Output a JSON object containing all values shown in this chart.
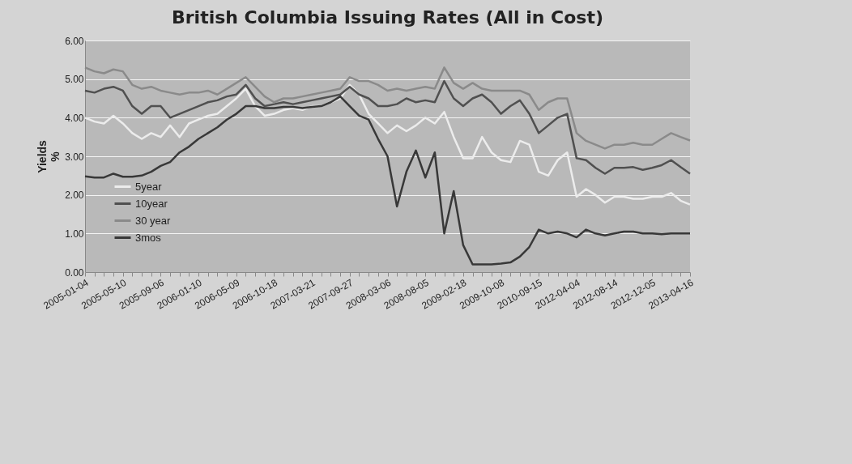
{
  "chart_data": {
    "type": "line",
    "title": "British Columbia Issuing Rates (All in Cost)",
    "ylabel": "Yields\n%",
    "categories": [
      "2005-01-04",
      null,
      null,
      null,
      "2005-05-10",
      null,
      null,
      null,
      "2005-09-06",
      null,
      null,
      null,
      "2006-01-10",
      null,
      null,
      null,
      "2006-05-09",
      null,
      null,
      null,
      "2006-10-18",
      null,
      null,
      null,
      "2007-03-21",
      null,
      null,
      null,
      "2007-09-27",
      null,
      null,
      null,
      "2008-03-06",
      null,
      null,
      null,
      "2008-08-05",
      null,
      null,
      null,
      "2009-02-18",
      null,
      null,
      null,
      "2009-10-08",
      null,
      null,
      null,
      "2010-09-15",
      null,
      null,
      null,
      "2012-04-04",
      null,
      null,
      null,
      "2012-08-14",
      null,
      null,
      null,
      "2012-12-05",
      null,
      null,
      null,
      "2013-04-16"
    ],
    "series": [
      {
        "name": "5year",
        "color": "#ececec",
        "values": [
          4.0,
          3.9,
          3.85,
          4.05,
          3.85,
          3.6,
          3.45,
          3.6,
          3.5,
          3.8,
          3.5,
          3.85,
          3.95,
          4.05,
          4.1,
          4.3,
          4.5,
          4.75,
          4.3,
          4.05,
          4.1,
          4.2,
          4.25,
          4.2,
          4.3,
          4.3,
          4.4,
          4.5,
          4.85,
          4.6,
          4.1,
          3.85,
          3.6,
          3.8,
          3.65,
          3.8,
          4.0,
          3.85,
          4.15,
          3.5,
          2.95,
          2.95,
          3.5,
          3.1,
          2.9,
          2.85,
          3.4,
          3.3,
          2.6,
          2.5,
          2.9,
          3.1,
          1.95,
          2.15,
          2.0,
          1.8,
          1.95,
          1.95,
          1.9,
          1.9,
          1.95,
          1.95,
          2.05,
          1.85,
          1.75
        ]
      },
      {
        "name": "10year",
        "color": "#505050",
        "values": [
          4.7,
          4.65,
          4.75,
          4.8,
          4.7,
          4.3,
          4.1,
          4.3,
          4.3,
          4.0,
          4.1,
          4.2,
          4.3,
          4.4,
          4.45,
          4.55,
          4.6,
          4.85,
          4.5,
          4.3,
          4.35,
          4.4,
          4.35,
          4.4,
          4.45,
          4.5,
          4.55,
          4.6,
          4.8,
          4.6,
          4.5,
          4.3,
          4.3,
          4.35,
          4.5,
          4.4,
          4.45,
          4.4,
          4.95,
          4.5,
          4.3,
          4.5,
          4.6,
          4.4,
          4.1,
          4.3,
          4.45,
          4.1,
          3.6,
          3.8,
          4.0,
          4.1,
          2.95,
          2.9,
          2.7,
          2.55,
          2.7,
          2.7,
          2.72,
          2.65,
          2.7,
          2.77,
          2.9,
          2.72,
          2.55
        ]
      },
      {
        "name": "30 year",
        "color": "#8a8a8a",
        "values": [
          5.3,
          5.2,
          5.15,
          5.25,
          5.2,
          4.85,
          4.75,
          4.8,
          4.7,
          4.65,
          4.6,
          4.65,
          4.65,
          4.7,
          4.6,
          4.75,
          4.9,
          5.05,
          4.8,
          4.55,
          4.4,
          4.5,
          4.5,
          4.55,
          4.6,
          4.65,
          4.7,
          4.75,
          5.05,
          4.95,
          4.95,
          4.85,
          4.7,
          4.75,
          4.7,
          4.75,
          4.8,
          4.75,
          5.3,
          4.9,
          4.75,
          4.9,
          4.75,
          4.7,
          4.7,
          4.7,
          4.7,
          4.6,
          4.2,
          4.4,
          4.5,
          4.5,
          3.6,
          3.4,
          3.3,
          3.2,
          3.3,
          3.3,
          3.35,
          3.3,
          3.3,
          3.45,
          3.6,
          3.5,
          3.41
        ]
      },
      {
        "name": "3mos",
        "color": "#383838",
        "values": [
          2.48,
          2.45,
          2.45,
          2.55,
          2.47,
          2.47,
          2.5,
          2.6,
          2.75,
          2.85,
          3.1,
          3.25,
          3.45,
          3.6,
          3.75,
          3.95,
          4.1,
          4.3,
          4.3,
          4.25,
          4.25,
          4.28,
          4.28,
          4.25,
          4.28,
          4.3,
          4.4,
          4.55,
          4.3,
          4.05,
          3.95,
          3.45,
          3.0,
          1.7,
          2.6,
          3.15,
          2.45,
          3.1,
          1.0,
          2.1,
          0.7,
          0.2,
          0.2,
          0.2,
          0.22,
          0.25,
          0.4,
          0.65,
          1.1,
          1.0,
          1.05,
          1.0,
          0.9,
          1.1,
          1.0,
          0.95,
          1.0,
          1.05,
          1.05,
          1.0,
          1.0,
          0.98,
          1.0,
          1.0,
          1.0
        ]
      }
    ],
    "ylim": [
      0,
      6
    ],
    "yticks": [
      {
        "value": 0,
        "label": "0.00"
      },
      {
        "value": 1,
        "label": "1.00"
      },
      {
        "value": 2,
        "label": "2.00"
      },
      {
        "value": 3,
        "label": "3.00"
      },
      {
        "value": 4,
        "label": "4.00"
      },
      {
        "value": 5,
        "label": "5.00"
      },
      {
        "value": 6,
        "label": "6.00"
      }
    ],
    "grid": "y",
    "legend": "bottom left",
    "line_style": "solid"
  }
}
